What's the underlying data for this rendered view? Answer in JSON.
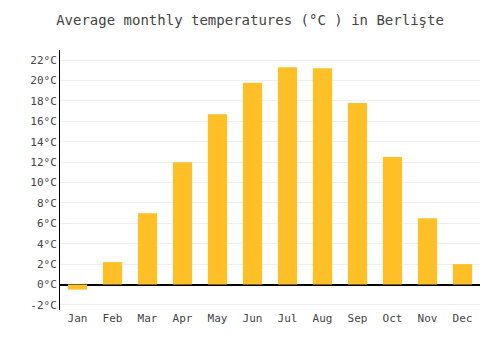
{
  "chart_data": {
    "type": "bar",
    "title": "Average monthly temperatures (°C ) in Berlişte",
    "categories": [
      "Jan",
      "Feb",
      "Mar",
      "Apr",
      "May",
      "Jun",
      "Jul",
      "Aug",
      "Sep",
      "Oct",
      "Nov",
      "Dec"
    ],
    "values": [
      -0.5,
      2.2,
      7.0,
      12.0,
      16.7,
      19.8,
      21.3,
      21.2,
      17.8,
      12.5,
      6.5,
      2.0
    ],
    "color": "#FFC027",
    "ylim": [
      -2.5,
      23
    ],
    "yticks": [
      {
        "value": -2,
        "label": "-2°C"
      },
      {
        "value": 0,
        "label": "0°C"
      },
      {
        "value": 2,
        "label": "2°C"
      },
      {
        "value": 4,
        "label": "4°C"
      },
      {
        "value": 6,
        "label": "6°C"
      },
      {
        "value": 8,
        "label": "8°C"
      },
      {
        "value": 10,
        "label": "10°C"
      },
      {
        "value": 12,
        "label": "12°C"
      },
      {
        "value": 14,
        "label": "14°C"
      },
      {
        "value": 16,
        "label": "16°C"
      },
      {
        "value": 18,
        "label": "18°C"
      },
      {
        "value": 20,
        "label": "20°C"
      },
      {
        "value": 22,
        "label": "22°C"
      }
    ],
    "grid": true
  }
}
